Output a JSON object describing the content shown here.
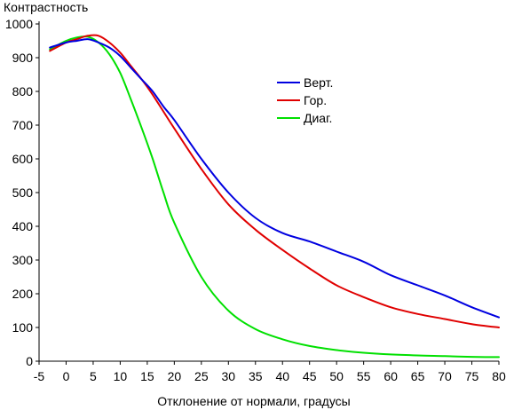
{
  "chart_data": {
    "type": "line",
    "title": "",
    "xlabel": "Отклонение от нормали, градусы",
    "ylabel": "Контрастность",
    "xlim": [
      -5,
      80
    ],
    "ylim": [
      0,
      1000
    ],
    "xticks": [
      -5,
      0,
      5,
      10,
      15,
      20,
      25,
      30,
      35,
      40,
      45,
      50,
      55,
      60,
      65,
      70,
      75,
      80
    ],
    "yticks": [
      0,
      100,
      200,
      300,
      400,
      500,
      600,
      700,
      800,
      900,
      1000
    ],
    "grid": false,
    "legend_position": "right-top",
    "x": [
      -3,
      0,
      2,
      4,
      6,
      8,
      10,
      12,
      14,
      16,
      18,
      20,
      25,
      30,
      35,
      40,
      45,
      50,
      55,
      60,
      65,
      70,
      75,
      80
    ],
    "series": [
      {
        "name": "Верт.",
        "color": "#0000e0",
        "values": [
          930,
          945,
          950,
          955,
          945,
          930,
          905,
          870,
          835,
          800,
          755,
          715,
          600,
          500,
          425,
          380,
          355,
          325,
          295,
          255,
          225,
          195,
          160,
          130
        ]
      },
      {
        "name": "Гор.",
        "color": "#e00000",
        "values": [
          920,
          945,
          955,
          965,
          965,
          945,
          915,
          875,
          835,
          790,
          740,
          690,
          570,
          465,
          390,
          330,
          275,
          225,
          190,
          160,
          140,
          125,
          110,
          100
        ]
      },
      {
        "name": "Диаг.",
        "color": "#00e000",
        "values": [
          925,
          950,
          960,
          962,
          945,
          910,
          855,
          775,
          690,
          600,
          500,
          410,
          250,
          150,
          95,
          65,
          45,
          33,
          25,
          20,
          17,
          15,
          13,
          12
        ]
      }
    ]
  }
}
